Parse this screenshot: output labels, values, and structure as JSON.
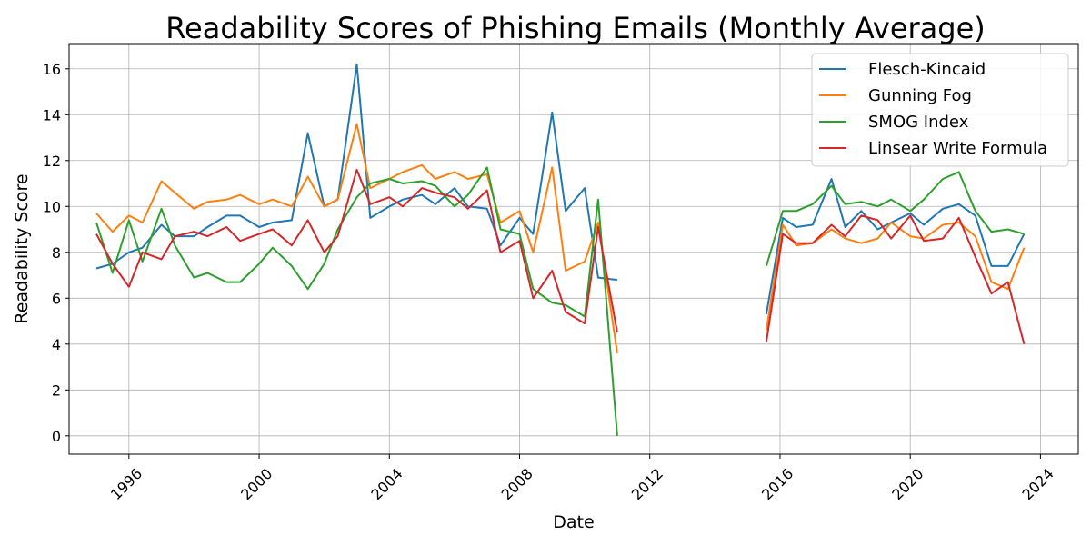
{
  "chart_data": {
    "type": "line",
    "title": "Readability Scores of Phishing Emails (Monthly Average)",
    "xlabel": "Date",
    "ylabel": "Readability Score",
    "xlim": [
      "1994-03-01",
      "2025-03-01"
    ],
    "ylim": [
      -0.8,
      17.1
    ],
    "x_ticks": [
      "1996",
      "2000",
      "2004",
      "2008",
      "2012",
      "2016",
      "2020",
      "2024"
    ],
    "y_ticks": [
      0,
      2,
      4,
      6,
      8,
      10,
      12,
      14,
      16
    ],
    "grid": true,
    "legend_position": "top-right",
    "segments": [
      {
        "x": [
          "1995-01-01",
          "1995-07-01",
          "1996-01-01",
          "1996-06-01",
          "1997-01-01",
          "1997-06-01",
          "1998-01-01",
          "1998-06-01",
          "1999-01-01",
          "1999-06-01",
          "2000-01-01",
          "2000-06-01",
          "2001-01-01",
          "2001-07-01",
          "2002-01-01",
          "2002-06-01",
          "2003-01-01",
          "2003-06-01",
          "2004-01-01",
          "2004-06-01",
          "2005-01-01",
          "2005-06-01",
          "2006-01-01",
          "2006-06-01",
          "2007-01-01",
          "2007-06-01",
          "2008-01-01",
          "2008-06-01",
          "2009-01-01",
          "2009-06-01",
          "2010-01-01",
          "2010-06-01",
          "2011-01-01"
        ],
        "series": [
          {
            "name": "Flesch-Kincaid",
            "values": [
              7.3,
              7.5,
              8.0,
              8.2,
              9.2,
              8.7,
              8.7,
              9.1,
              9.6,
              9.6,
              9.1,
              9.3,
              9.4,
              13.2,
              10.0,
              10.3,
              16.2,
              9.5,
              10.0,
              10.3,
              10.5,
              10.1,
              10.8,
              10.0,
              9.9,
              8.3,
              9.5,
              8.8,
              14.1,
              9.8,
              10.8,
              6.9,
              6.8
            ]
          },
          {
            "name": "Gunning Fog",
            "values": [
              9.7,
              8.9,
              9.6,
              9.3,
              11.1,
              10.6,
              9.9,
              10.2,
              10.3,
              10.5,
              10.1,
              10.3,
              10.0,
              11.3,
              10.0,
              10.3,
              13.6,
              10.8,
              11.2,
              11.5,
              11.8,
              11.2,
              11.5,
              11.2,
              11.4,
              9.3,
              9.8,
              8.0,
              11.7,
              7.2,
              7.6,
              9.3,
              3.6
            ]
          },
          {
            "name": "SMOG Index",
            "values": [
              9.3,
              7.1,
              9.4,
              7.6,
              9.9,
              8.3,
              6.9,
              7.1,
              6.7,
              6.7,
              7.5,
              8.2,
              7.4,
              6.4,
              7.5,
              9.0,
              10.4,
              11.0,
              11.2,
              11.0,
              11.1,
              10.9,
              10.0,
              10.5,
              11.7,
              9.0,
              8.8,
              6.4,
              5.8,
              5.7,
              5.2,
              10.3,
              0.0
            ]
          },
          {
            "name": "Linsear Write Formula",
            "values": [
              8.8,
              7.5,
              6.5,
              8.0,
              7.7,
              8.7,
              8.9,
              8.7,
              9.1,
              8.5,
              8.8,
              9.0,
              8.3,
              9.4,
              8.0,
              8.7,
              11.6,
              10.1,
              10.4,
              10.0,
              10.8,
              10.6,
              10.4,
              9.9,
              10.7,
              8.0,
              8.5,
              6.0,
              7.2,
              5.4,
              4.9,
              9.1,
              4.5
            ]
          }
        ]
      },
      {
        "x": [
          "2015-08-01",
          "2016-02-01",
          "2016-07-01",
          "2017-01-01",
          "2017-08-01",
          "2018-01-01",
          "2018-07-01",
          "2019-01-01",
          "2019-06-01",
          "2020-01-01",
          "2020-06-01",
          "2021-01-01",
          "2021-07-01",
          "2022-01-01",
          "2022-07-01",
          "2023-01-01",
          "2023-07-01"
        ],
        "series": [
          {
            "name": "Flesch-Kincaid",
            "values": [
              5.3,
              9.5,
              9.1,
              9.2,
              11.2,
              9.1,
              9.8,
              9.0,
              9.3,
              9.7,
              9.2,
              9.9,
              10.1,
              9.6,
              7.4,
              7.4,
              8.8
            ]
          },
          {
            "name": "Gunning Fog",
            "values": [
              4.6,
              9.2,
              8.3,
              8.4,
              9.0,
              8.6,
              8.4,
              8.6,
              9.3,
              8.7,
              8.6,
              9.2,
              9.3,
              8.7,
              6.7,
              6.4,
              8.2
            ]
          },
          {
            "name": "SMOG Index",
            "values": [
              7.4,
              9.8,
              9.8,
              10.1,
              10.9,
              10.1,
              10.2,
              10.0,
              10.3,
              9.8,
              10.3,
              11.2,
              11.5,
              9.8,
              8.9,
              9.0,
              8.8
            ]
          },
          {
            "name": "Linsear Write Formula",
            "values": [
              4.1,
              8.8,
              8.4,
              8.4,
              9.2,
              8.7,
              9.6,
              9.4,
              8.6,
              9.6,
              8.5,
              8.6,
              9.5,
              7.8,
              6.2,
              6.7,
              4.0
            ]
          }
        ]
      }
    ],
    "colors": {
      "Flesch-Kincaid": "#1f77b4",
      "Gunning Fog": "#ff7f0e",
      "SMOG Index": "#2ca02c",
      "Linsear Write Formula": "#d62728"
    },
    "legend": [
      "Flesch-Kincaid",
      "Gunning Fog",
      "SMOG Index",
      "Linsear Write Formula"
    ]
  }
}
